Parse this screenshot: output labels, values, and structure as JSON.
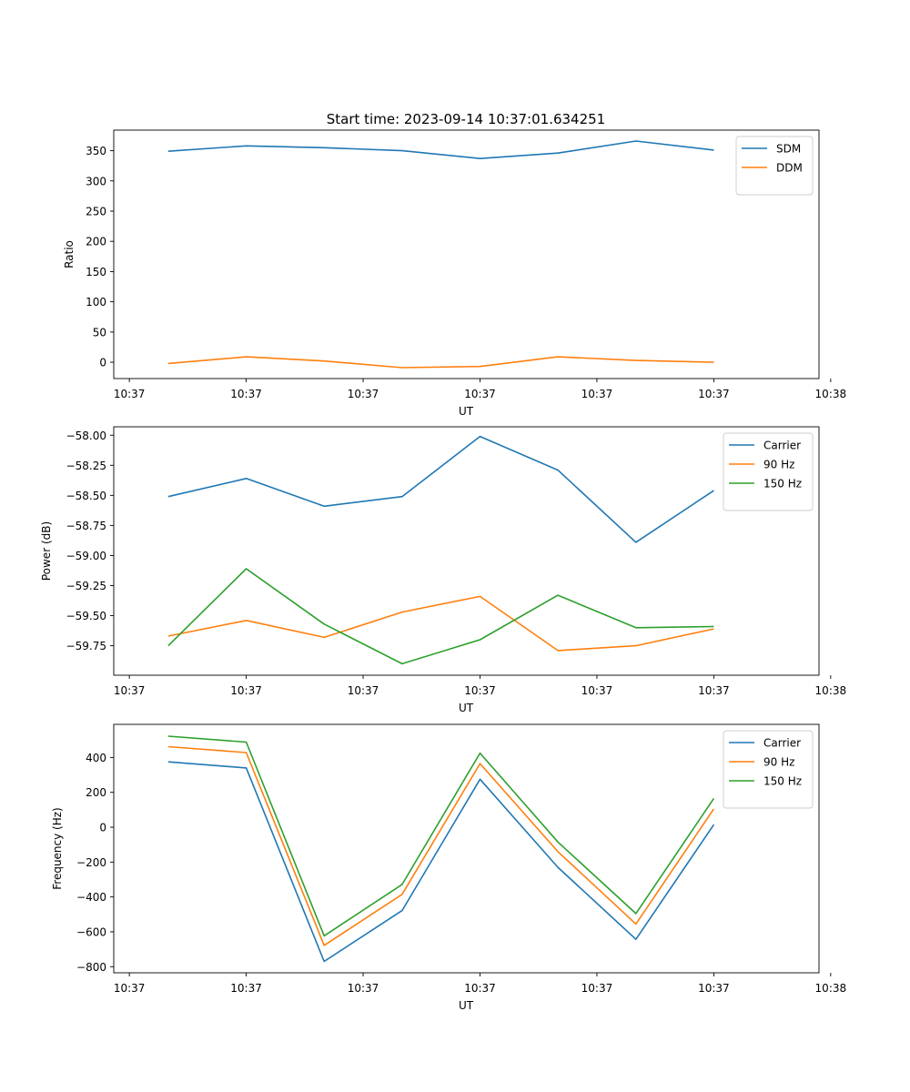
{
  "title": "Start time: 2023-09-14 10:37:01.634251",
  "colors": {
    "blue": "#1f77b4",
    "orange": "#ff7f0e",
    "green": "#2ca02c"
  },
  "chart_data": [
    {
      "type": "line",
      "xlabel": "UT",
      "ylabel": "Ratio",
      "x": [
        1,
        2,
        3,
        4,
        5,
        6,
        7,
        8
      ],
      "xlim": [
        0.3,
        9.35
      ],
      "xticks": [
        0.5,
        2,
        3.5,
        5,
        6.5,
        8,
        9.5
      ],
      "xtick_labels": [
        "10:37",
        "10:37",
        "10:37",
        "10:37",
        "10:37",
        "10:37",
        "10:38"
      ],
      "ylim": [
        -27,
        384
      ],
      "yticks": [
        0,
        50,
        100,
        150,
        200,
        250,
        300,
        350
      ],
      "ytick_labels": [
        "0",
        "50",
        "100",
        "150",
        "200",
        "250",
        "300",
        "350"
      ],
      "legend": "top-right",
      "series": [
        {
          "name": "SDM",
          "color": "#1f77b4",
          "values": [
            349,
            358,
            355,
            350,
            337,
            346,
            366,
            351
          ]
        },
        {
          "name": "DDM",
          "color": "#ff7f0e",
          "values": [
            -2,
            9,
            2,
            -9,
            -7,
            9,
            3,
            0
          ]
        }
      ]
    },
    {
      "type": "line",
      "xlabel": "UT",
      "ylabel": "Power (dB)",
      "x": [
        1,
        2,
        3,
        4,
        5,
        6,
        7,
        8
      ],
      "xlim": [
        0.3,
        9.35
      ],
      "xticks": [
        0.5,
        2,
        3.5,
        5,
        6.5,
        8,
        9.5
      ],
      "xtick_labels": [
        "10:37",
        "10:37",
        "10:37",
        "10:37",
        "10:37",
        "10:37",
        "10:38"
      ],
      "ylim": [
        -59.995,
        -57.93
      ],
      "yticks": [
        -59.75,
        -59.5,
        -59.25,
        -59.0,
        -58.75,
        -58.5,
        -58.25,
        -58.0
      ],
      "ytick_labels": [
        "−59.75",
        "−59.50",
        "−59.25",
        "−59.00",
        "−58.75",
        "−58.50",
        "−58.25",
        "−58.00"
      ],
      "legend": "top-right",
      "series": [
        {
          "name": "Carrier",
          "color": "#1f77b4",
          "values": [
            -58.51,
            -58.36,
            -58.59,
            -58.51,
            -58.01,
            -58.29,
            -58.89,
            -58.46
          ]
        },
        {
          "name": "90 Hz",
          "color": "#ff7f0e",
          "values": [
            -59.67,
            -59.54,
            -59.68,
            -59.47,
            -59.34,
            -59.79,
            -59.75,
            -59.61
          ]
        },
        {
          "name": "150 Hz",
          "color": "#2ca02c",
          "values": [
            -59.75,
            -59.11,
            -59.57,
            -59.9,
            -59.7,
            -59.33,
            -59.6,
            -59.59
          ]
        }
      ]
    },
    {
      "type": "line",
      "xlabel": "UT",
      "ylabel": "Frequency (Hz)",
      "x": [
        1,
        2,
        3,
        4,
        5,
        6,
        7,
        8
      ],
      "xlim": [
        0.3,
        9.35
      ],
      "xticks": [
        0.5,
        2,
        3.5,
        5,
        6.5,
        8,
        9.5
      ],
      "xtick_labels": [
        "10:37",
        "10:37",
        "10:37",
        "10:37",
        "10:37",
        "10:37",
        "10:38"
      ],
      "ylim": [
        -835,
        590
      ],
      "yticks": [
        -800,
        -600,
        -400,
        -200,
        0,
        200,
        400
      ],
      "ytick_labels": [
        "−800",
        "−600",
        "−400",
        "−200",
        "0",
        "200",
        "400"
      ],
      "legend": "top-right",
      "series": [
        {
          "name": "Carrier",
          "color": "#1f77b4",
          "values": [
            375,
            340,
            -770,
            -478,
            275,
            -230,
            -643,
            15
          ]
        },
        {
          "name": "90 Hz",
          "color": "#ff7f0e",
          "values": [
            462,
            428,
            -678,
            -385,
            365,
            -140,
            -555,
            105
          ]
        },
        {
          "name": "150 Hz",
          "color": "#2ca02c",
          "values": [
            522,
            488,
            -623,
            -328,
            425,
            -85,
            -495,
            165
          ]
        }
      ]
    }
  ]
}
